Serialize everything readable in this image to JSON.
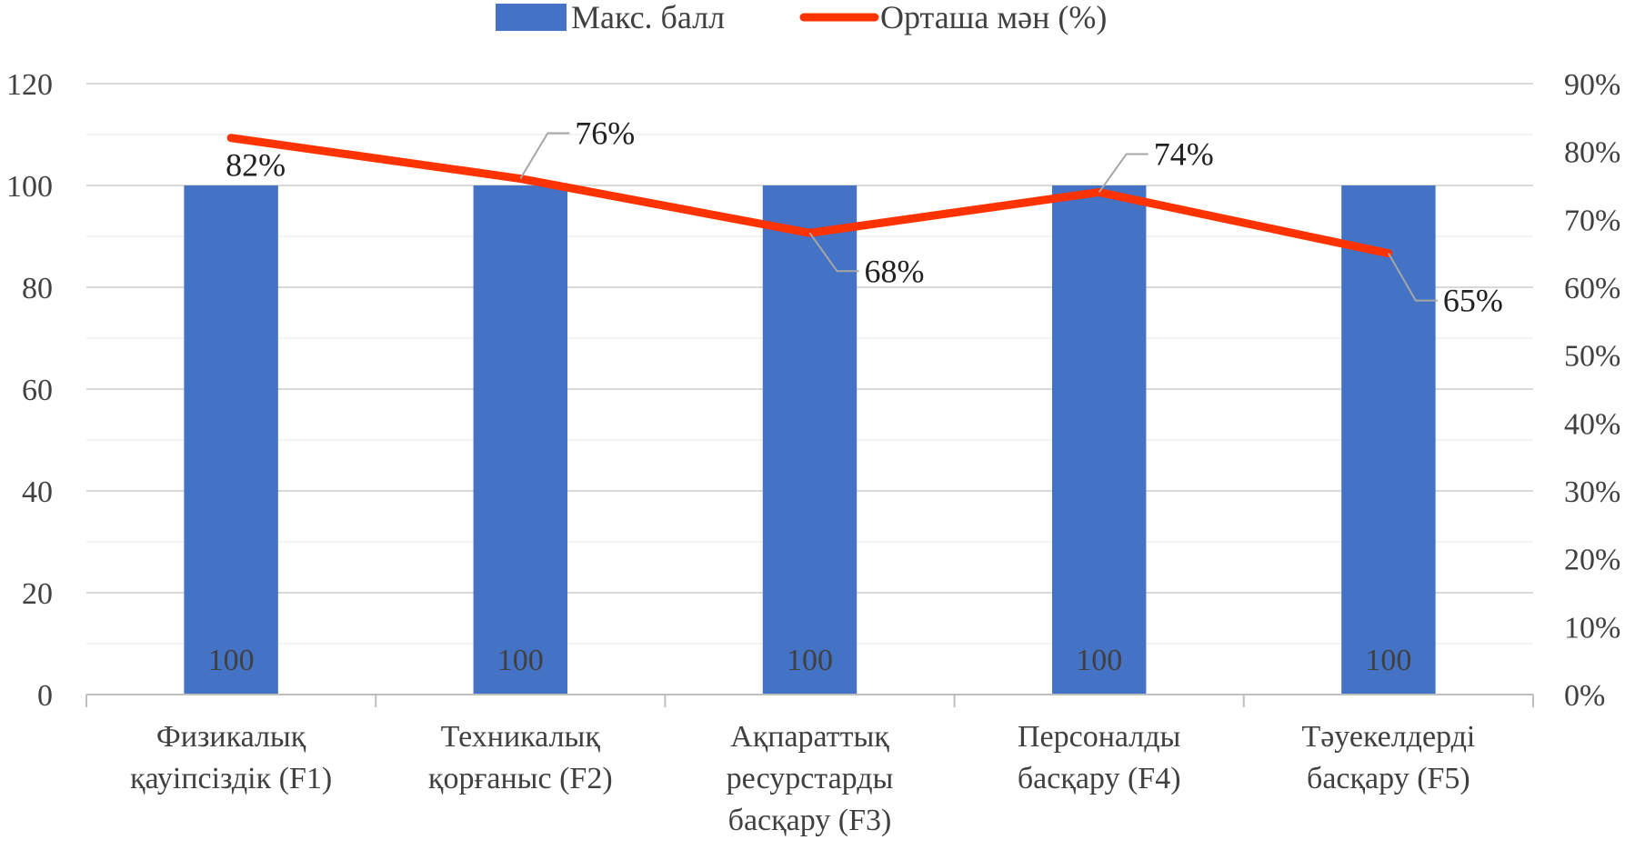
{
  "chart_data": {
    "type": "bar",
    "title": "",
    "categories": [
      [
        "Физикалық",
        "қауіпсіздік (F1)"
      ],
      [
        "Техникалық",
        "қорғаныс (F2)"
      ],
      [
        "Ақпараттық",
        "ресурстарды",
        "басқару (F3)"
      ],
      [
        "Персоналды",
        "басқару (F4)"
      ],
      [
        "Тәуекелдерді",
        "басқару (F5)"
      ]
    ],
    "series": [
      {
        "name": "Макс. балл",
        "type": "bar",
        "axis": "left",
        "color": "#4472C4",
        "values": [
          100,
          100,
          100,
          100,
          100
        ],
        "labels": [
          "100",
          "100",
          "100",
          "100",
          "100"
        ]
      },
      {
        "name": "Орташа мән (%)",
        "type": "line",
        "axis": "right",
        "color": "#FF3300",
        "values": [
          82,
          76,
          68,
          74,
          65
        ],
        "labels": [
          "82%",
          "76%",
          "68%",
          "74%",
          "65%"
        ]
      }
    ],
    "y_left": {
      "min": 0,
      "max": 120,
      "ticks": [
        "0",
        "20",
        "40",
        "60",
        "80",
        "100",
        "120"
      ]
    },
    "y_right": {
      "min": 0,
      "max": 90,
      "ticks": [
        "0%",
        "10%",
        "20%",
        "30%",
        "40%",
        "50%",
        "60%",
        "70%",
        "80%",
        "90%"
      ]
    },
    "grid": true,
    "legend_position": "top"
  }
}
